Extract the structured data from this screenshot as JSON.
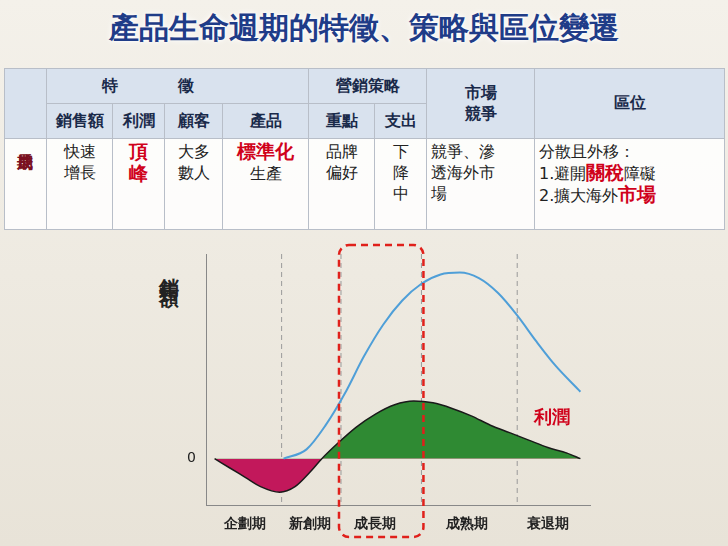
{
  "title": "產品生命週期的特徵、策略與區位變遷",
  "table": {
    "header_row1": [
      {
        "lines": [
          "特徵"
        ],
        "colspan": 4
      },
      {
        "lines": [
          "營銷策略"
        ],
        "colspan": 2
      },
      {
        "lines": [
          "市場",
          "競爭"
        ],
        "rowspan": 2
      },
      {
        "lines": [
          "區位"
        ],
        "rowspan": 2
      }
    ],
    "header_row2": [
      "銷售額",
      "利潤",
      "顧客",
      "產品",
      "重點",
      "支出"
    ],
    "rows": [
      {
        "stage": "成長期",
        "cells": [
          [
            [
              "快速"
            ],
            [
              "增長"
            ]
          ],
          [
            [
              {
                "text": "頂",
                "em": true
              }
            ],
            [
              {
                "text": "峰",
                "em": true
              }
            ]
          ],
          [
            [
              "大多"
            ],
            [
              "數人"
            ]
          ],
          [
            [
              {
                "text": "標準化",
                "em": true
              }
            ],
            [
              "生產"
            ]
          ],
          [
            [
              "品牌"
            ],
            [
              "偏好"
            ]
          ],
          [
            [
              "下"
            ],
            [
              "降"
            ],
            [
              "中"
            ]
          ],
          [
            [
              "競爭、滲"
            ],
            [
              "透海外市"
            ],
            [
              "場"
            ]
          ],
          [
            [
              "分散且外移："
            ],
            [
              "1.避開",
              {
                "text": "關稅",
                "em": true
              },
              "障礙"
            ],
            [
              "2.擴大海外",
              {
                "text": "市場",
                "em": true
              }
            ]
          ]
        ]
      }
    ]
  },
  "chart_data": {
    "type": "line",
    "ylabel": "銷售額",
    "xlim": [
      0,
      100
    ],
    "xticks": [
      {
        "value": 10,
        "label": "企劃期"
      },
      {
        "value": 27,
        "label": "新創期"
      },
      {
        "value": 44,
        "label": "成長期"
      },
      {
        "value": 68,
        "label": "成熟期"
      },
      {
        "value": 89,
        "label": "衰退期"
      }
    ],
    "ylim": [
      -25,
      110
    ],
    "yticks": [
      0
    ],
    "grid": false,
    "stage_boundaries": [
      19.5,
      35,
      56,
      81
    ],
    "highlight": {
      "from": 35,
      "to": 56,
      "color": "#e0201b"
    },
    "annotations": [
      {
        "text": "利潤",
        "x": 90,
        "y": 17,
        "color": "#d0021b"
      }
    ],
    "series": [
      {
        "name": "銷售額",
        "type": "line",
        "color": "#4f9fd8",
        "x": [
          20,
          26,
          31,
          36,
          41,
          46,
          51,
          56,
          61,
          66,
          71,
          76,
          81,
          86,
          91,
          97.5
        ],
        "values": [
          0,
          5,
          18,
          35,
          55,
          72,
          85,
          94,
          99,
          100,
          97,
          89,
          77,
          63,
          50,
          36
        ]
      },
      {
        "name": "利潤",
        "type": "area",
        "color": "#1a1a1a",
        "x": [
          2,
          6,
          10,
          14,
          19,
          23,
          27,
          30,
          34,
          39,
          44,
          49,
          54,
          59,
          64,
          69,
          74,
          79,
          84,
          89,
          94,
          97.5
        ],
        "values": [
          0,
          -5,
          -10,
          -15,
          -18,
          -15,
          -7,
          0,
          8,
          17,
          24,
          29,
          31,
          30,
          27,
          23,
          18,
          14,
          10,
          6,
          3,
          0
        ]
      }
    ]
  }
}
